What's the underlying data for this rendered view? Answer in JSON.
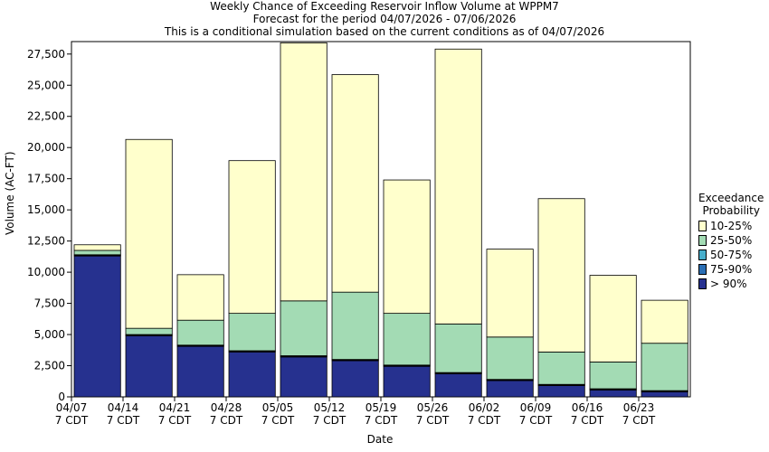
{
  "chart_data": {
    "type": "bar",
    "title": "Weekly Chance of Exceeding Reservoir Inflow Volume at WPPM7",
    "subtitle1": "Forecast for the period 04/07/2026 - 07/06/2026",
    "subtitle2": "This is a conditional simulation based on the current conditions as of 04/07/2026",
    "xlabel": "Date",
    "ylabel": "Volume (AC-FT)",
    "ylim": [
      0,
      28500
    ],
    "yticks": [
      0,
      2500,
      5000,
      7500,
      10000,
      12500,
      15000,
      17500,
      20000,
      22500,
      25000,
      27500
    ],
    "ytick_labels": [
      "0",
      "2,500",
      "5,000",
      "7,500",
      "10,000",
      "12,500",
      "15,000",
      "17,500",
      "20,000",
      "22,500",
      "25,000",
      "27,500"
    ],
    "xtick_labels": [
      [
        "04/07",
        "7 CDT"
      ],
      [
        "04/14",
        "7 CDT"
      ],
      [
        "04/21",
        "7 CDT"
      ],
      [
        "04/28",
        "7 CDT"
      ],
      [
        "05/05",
        "7 CDT"
      ],
      [
        "05/12",
        "7 CDT"
      ],
      [
        "05/19",
        "7 CDT"
      ],
      [
        "05/26",
        "7 CDT"
      ],
      [
        "06/02",
        "7 CDT"
      ],
      [
        "06/09",
        "7 CDT"
      ],
      [
        "06/16",
        "7 CDT"
      ],
      [
        "06/23",
        "7 CDT"
      ]
    ],
    "grid": false,
    "legend": {
      "title_line1": "Exceedance",
      "title_line2": "Probability",
      "placement": "right"
    },
    "series": [
      {
        "name": "> 90%",
        "color": "#26318f",
        "values": [
          11300,
          4900,
          4050,
          3600,
          3200,
          2900,
          2450,
          1850,
          1300,
          900,
          550,
          400
        ]
      },
      {
        "name": "75-90%",
        "color": "#2b6fb5",
        "values": [
          50,
          50,
          50,
          50,
          50,
          50,
          50,
          50,
          50,
          50,
          50,
          50
        ]
      },
      {
        "name": "50-75%",
        "color": "#47aecb",
        "values": [
          50,
          50,
          50,
          50,
          50,
          50,
          50,
          50,
          50,
          50,
          50,
          50
        ]
      },
      {
        "name": "25-50%",
        "color": "#a3dbb4",
        "values": [
          350,
          500,
          2000,
          3000,
          4400,
          5400,
          4150,
          3900,
          3400,
          2600,
          2150,
          3800
        ]
      },
      {
        "name": "10-25%",
        "color": "#ffffcc",
        "values": [
          450,
          15150,
          3650,
          12250,
          20700,
          17450,
          10700,
          22050,
          7050,
          12300,
          6950,
          3450
        ]
      }
    ],
    "legend_order": [
      "10-25%",
      "25-50%",
      "50-75%",
      "75-90%",
      "> 90%"
    ]
  }
}
